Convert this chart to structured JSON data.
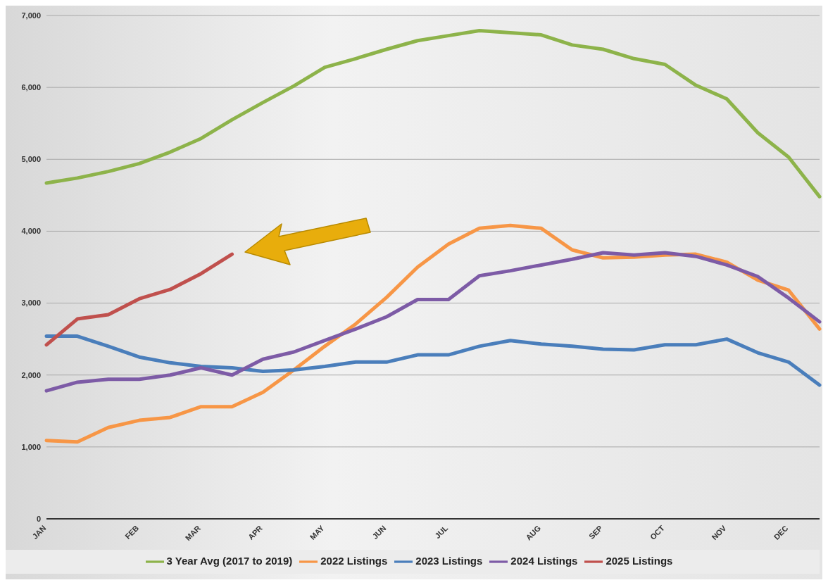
{
  "chart_data": {
    "type": "line",
    "categories": [
      "JAN",
      null,
      null,
      "FEB",
      null,
      "MAR",
      null,
      "APR",
      null,
      "MAY",
      null,
      "JUN",
      null,
      "JUL",
      null,
      null,
      "AUG",
      null,
      "SEP",
      null,
      "OCT",
      null,
      "NOV",
      null,
      "DEC",
      null
    ],
    "series": [
      {
        "name": "3 Year Avg (2017 to 2019)",
        "color": "#8db34a",
        "values": [
          4670,
          4740,
          4830,
          4940,
          5100,
          5290,
          5550,
          5790,
          6020,
          6280,
          6400,
          6530,
          6650,
          6720,
          6790,
          6760,
          6730,
          6590,
          6530,
          6400,
          6320,
          6030,
          5840,
          5370,
          5030,
          4480
        ]
      },
      {
        "name": "2022 Listings",
        "color": "#f79646",
        "values": [
          1090,
          1070,
          1270,
          1370,
          1410,
          1560,
          1560,
          1760,
          2070,
          2400,
          2710,
          3080,
          3500,
          3820,
          4040,
          4080,
          4040,
          3740,
          3630,
          3640,
          3670,
          3680,
          3570,
          3320,
          3180,
          2640
        ]
      },
      {
        "name": "2023 Listings",
        "color": "#4a7ebb",
        "values": [
          2540,
          2540,
          2400,
          2250,
          2170,
          2120,
          2100,
          2050,
          2070,
          2120,
          2180,
          2180,
          2280,
          2280,
          2400,
          2480,
          2430,
          2400,
          2360,
          2350,
          2420,
          2420,
          2500,
          2310,
          2180,
          1860
        ]
      },
      {
        "name": "2024 Listings",
        "color": "#7d5ba6",
        "values": [
          1780,
          1900,
          1940,
          1940,
          2000,
          2100,
          2000,
          2220,
          2320,
          2480,
          2640,
          2810,
          3050,
          3050,
          3380,
          3450,
          3530,
          3610,
          3700,
          3670,
          3700,
          3650,
          3530,
          3370,
          3070,
          2740
        ]
      },
      {
        "name": "2025 Listings",
        "color": "#c0504d",
        "values": [
          2420,
          2780,
          2840,
          3060,
          3190,
          3410,
          3680,
          null,
          null,
          null,
          null,
          null,
          null,
          null,
          null,
          null,
          null,
          null,
          null,
          null,
          null,
          null,
          null,
          null,
          null,
          null
        ]
      }
    ],
    "ylim": [
      0,
      7000
    ],
    "yticks": [
      0,
      {
        "value": 1000,
        "label": "1,000"
      },
      {
        "value": 2000,
        "label": "2,000"
      },
      {
        "value": 3000,
        "label": "3,000"
      },
      {
        "value": 4000,
        "label": "4,000"
      },
      {
        "value": 5000,
        "label": "5,000"
      },
      {
        "value": 6000,
        "label": "6,000"
      },
      {
        "value": 7000,
        "label": "7,000"
      }
    ],
    "grid": "y",
    "legend": "bottom",
    "marker": "none",
    "line_style": "solid"
  }
}
